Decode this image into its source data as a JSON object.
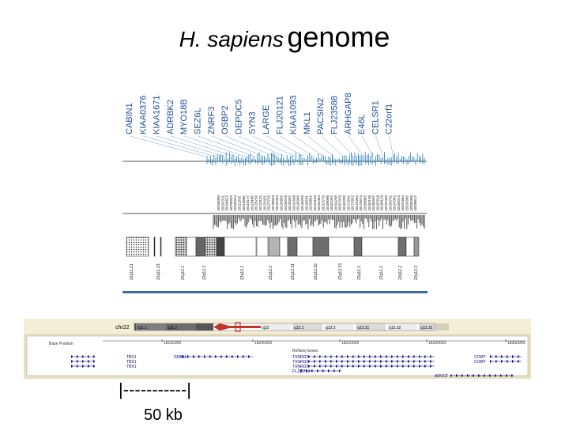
{
  "title": {
    "species": "H. sapiens",
    "word": "genome"
  },
  "genes": [
    "CABIN1",
    "KIAA0376",
    "KIAA1671",
    "ADRBK2",
    "MYO18B",
    "SEZ6L",
    "ZNRF3",
    "OSBP2",
    "DEPDC5",
    "SYN3",
    "LARGE",
    "FLJ20121",
    "KIAA1093",
    "MKL1",
    "PACSIN2",
    "FLJ23588",
    "ARHGAP8",
    "E46L",
    "CELSR1",
    "C22orf1"
  ],
  "bands": [
    "22q11.21",
    "22q11.23",
    "22q12.1",
    "22q12.3",
    "22q13.1",
    "22q13.2",
    "22q13.31",
    "22q13.32",
    "22q13.33",
    "22q11.1",
    "22q11.2",
    "22q12.2",
    "22q13.3"
  ],
  "browser": {
    "chrom_label": "chr22",
    "bands": [
      "q11.1",
      "q11.2",
      "q12",
      "q13.1",
      "q13.2",
      "q13.31",
      "q13.32",
      "q13.33"
    ],
    "position_label": "Base Position",
    "positions": [
      "18150000",
      "18200000",
      "18250000",
      "18300000",
      "18350000"
    ],
    "refseq_label": "RefSeq Genes",
    "genes": [
      "TBX1",
      "TBX1",
      "TBX1",
      "GNB1L",
      "TXNRD2",
      "TXNRD2",
      "TXNRD2",
      "COMT",
      "COMT",
      "FLJ25714",
      "ARVCF"
    ]
  },
  "scale": {
    "bar": "|-----------|",
    "label": "50 kb"
  },
  "colors": {
    "tick_blue": "#1a78b4",
    "band_dark": "#6e6e6e",
    "band_light": "#b4b4b4",
    "chrom_red": "#c0352a",
    "panel_bg": "#e9e0bf"
  }
}
